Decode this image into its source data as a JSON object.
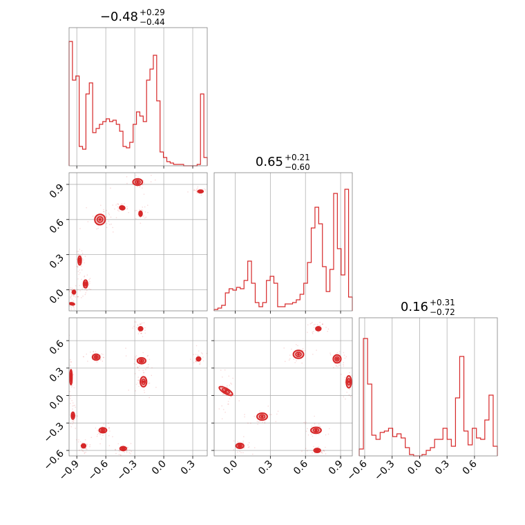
{
  "chart_data": {
    "type": "corner",
    "color": "#d62728",
    "titles": [
      {
        "median": "−0.48",
        "plus": "+0.29",
        "minus": "−0.44"
      },
      {
        "median": "0.65",
        "plus": "+0.21",
        "minus": "−0.60"
      },
      {
        "median": "0.16",
        "plus": "+0.31",
        "minus": "−0.72"
      }
    ],
    "ranges": [
      [
        -0.98,
        0.45
      ],
      [
        -0.18,
        1.0
      ],
      [
        -0.66,
        0.85
      ]
    ],
    "ticks": [
      {
        "values": [
          -0.9,
          -0.6,
          -0.3,
          0.0,
          0.3
        ],
        "labels": [
          "−0.9",
          "−0.6",
          "−0.3",
          "0.0",
          "0.3"
        ]
      },
      {
        "values": [
          0.0,
          0.3,
          0.6,
          0.9
        ],
        "labels": [
          "0.0",
          "0.3",
          "0.6",
          "0.9"
        ]
      },
      {
        "values": [
          -0.6,
          -0.3,
          0.0,
          0.3,
          0.6
        ],
        "labels": [
          "−0.6",
          "−0.3",
          "0.0",
          "0.3",
          "0.6"
        ]
      }
    ],
    "histograms": [
      {
        "density": [
          0.9,
          0.62,
          0.65,
          0.14,
          0.12,
          0.52,
          0.6,
          0.24,
          0.27,
          0.3,
          0.32,
          0.34,
          0.32,
          0.33,
          0.3,
          0.25,
          0.14,
          0.13,
          0.17,
          0.3,
          0.39,
          0.36,
          0.32,
          0.62,
          0.7,
          0.8,
          0.47,
          0.1,
          0.06,
          0.03,
          0.02,
          0.01,
          0.01,
          0.01,
          0.0,
          0.0,
          0.0,
          0.0,
          0.01,
          0.52,
          0.06
        ]
      },
      {
        "density": [
          0.01,
          0.02,
          0.04,
          0.13,
          0.16,
          0.15,
          0.17,
          0.16,
          0.22,
          0.36,
          0.2,
          0.06,
          0.03,
          0.06,
          0.22,
          0.25,
          0.2,
          0.03,
          0.03,
          0.05,
          0.05,
          0.06,
          0.08,
          0.12,
          0.2,
          0.35,
          0.6,
          0.75,
          0.63,
          0.32,
          0.14,
          0.3,
          0.85,
          0.45,
          0.26,
          0.88,
          0.1
        ]
      },
      {
        "density": [
          0.05,
          0.85,
          0.52,
          0.15,
          0.12,
          0.17,
          0.18,
          0.2,
          0.14,
          0.16,
          0.13,
          0.06,
          0.01,
          0.0,
          0.0,
          0.01,
          0.04,
          0.06,
          0.12,
          0.12,
          0.2,
          0.12,
          0.07,
          0.42,
          0.72,
          0.18,
          0.08,
          0.2,
          0.13,
          0.12,
          0.26,
          0.44,
          0.07
        ]
      }
    ],
    "pairs": [
      {
        "x_param": 0,
        "y_param": 1,
        "blobs": [
          [
            -0.95,
            -0.12,
            0.02,
            0.04,
            80
          ],
          [
            -0.93,
            -0.02,
            0.03,
            0.03,
            0
          ],
          [
            -0.87,
            0.25,
            0.03,
            0.07,
            0
          ],
          [
            -0.81,
            0.05,
            0.04,
            0.06,
            0
          ],
          [
            -0.66,
            0.6,
            0.1,
            0.08,
            50
          ],
          [
            -0.43,
            0.7,
            0.05,
            0.03,
            -10
          ],
          [
            -0.27,
            0.92,
            0.09,
            0.05,
            0
          ],
          [
            -0.24,
            0.65,
            0.03,
            0.04,
            0
          ],
          [
            0.38,
            0.84,
            0.05,
            0.02,
            0
          ]
        ]
      },
      {
        "x_param": 0,
        "y_param": 2,
        "blobs": [
          [
            -0.96,
            0.2,
            0.02,
            0.15,
            0
          ],
          [
            -0.94,
            -0.22,
            0.03,
            0.07,
            0
          ],
          [
            -0.83,
            -0.55,
            0.04,
            0.04,
            0
          ],
          [
            -0.7,
            0.42,
            0.07,
            0.06,
            0
          ],
          [
            -0.63,
            -0.38,
            0.07,
            0.05,
            0
          ],
          [
            -0.42,
            -0.58,
            0.06,
            0.04,
            0
          ],
          [
            -0.23,
            0.38,
            0.08,
            0.06,
            0
          ],
          [
            -0.21,
            0.15,
            0.06,
            0.1,
            0
          ],
          [
            -0.24,
            0.73,
            0.04,
            0.04,
            0
          ],
          [
            0.36,
            0.4,
            0.04,
            0.04,
            0
          ]
        ]
      },
      {
        "x_param": 1,
        "y_param": 2,
        "blobs": [
          [
            -0.08,
            0.05,
            0.04,
            0.15,
            60
          ],
          [
            0.04,
            -0.55,
            0.06,
            0.05,
            0
          ],
          [
            0.23,
            -0.23,
            0.08,
            0.07,
            0
          ],
          [
            0.54,
            0.45,
            0.08,
            0.08,
            0
          ],
          [
            0.69,
            -0.38,
            0.08,
            0.06,
            0
          ],
          [
            0.7,
            -0.6,
            0.05,
            0.04,
            0
          ],
          [
            0.71,
            0.73,
            0.04,
            0.04,
            0
          ],
          [
            0.87,
            0.4,
            0.06,
            0.08,
            0
          ],
          [
            0.97,
            0.15,
            0.04,
            0.12,
            0
          ]
        ]
      }
    ]
  }
}
